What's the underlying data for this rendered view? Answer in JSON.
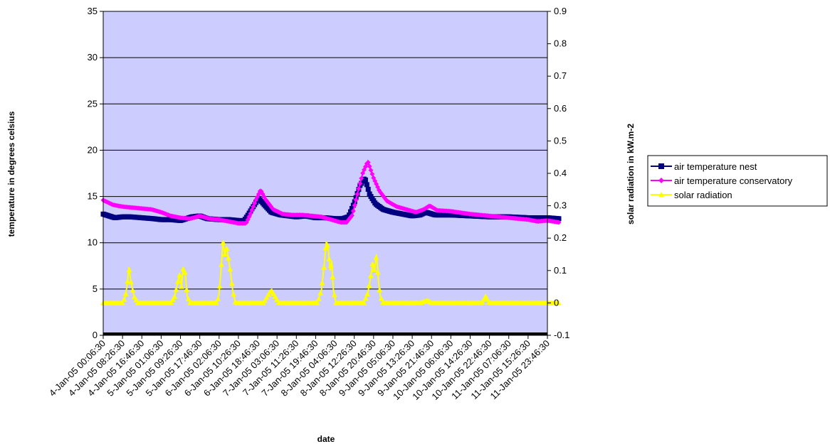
{
  "chart_data": {
    "type": "line",
    "title": "",
    "xlabel": "date",
    "ylabel": "temperature in degrees celsius",
    "y2label": "solar radiation in kW.m-2",
    "ylim": [
      0,
      35
    ],
    "y2lim": [
      -0.1,
      0.9
    ],
    "yticks": [
      0,
      5,
      10,
      15,
      20,
      25,
      30,
      35
    ],
    "y2ticks": [
      "-0.1",
      "0",
      "0.1",
      "0.2",
      "0.3",
      "0.4",
      "0.5",
      "0.6",
      "0.7",
      "0.8",
      "0.9"
    ],
    "categories": [
      "4-Jan-05 00:06:30",
      "4-Jan-05 08:26:30",
      "4-Jan-05 16:46:30",
      "5-Jan-05 01:06:30",
      "5-Jan-05 09:26:30",
      "5-Jan-05 17:46:30",
      "6-Jan-05 02:06:30",
      "6-Jan-05 10:26:30",
      "6-Jan-05 18:46:30",
      "7-Jan-05 03:06:30",
      "7-Jan-05 11:26:30",
      "7-Jan-05 19:46:30",
      "8-Jan-05 04:06:30",
      "8-Jan-05 12:26:30",
      "8-Jan-05 20:46:30",
      "9-Jan-05 05:06:30",
      "9-Jan-05 13:26:30",
      "9-Jan-05 21:46:30",
      "10-Jan-05 06:06:30",
      "10-Jan-05 14:26:30",
      "10-Jan-05 22:46:30",
      "11-Jan-05 07:06:30",
      "11-Jan-05 15:26:30",
      "11-Jan-05 23:46:30"
    ],
    "grid": "horizontal major gridlines",
    "plot_background": "#ccccff",
    "legend_position": "right",
    "series": [
      {
        "name": "air temperature nest",
        "axis": "left",
        "color": "#000080",
        "marker": "square",
        "points": [
          [
            0,
            13.1
          ],
          [
            0.3,
            12.9
          ],
          [
            0.6,
            12.7
          ],
          [
            1,
            12.8
          ],
          [
            1.4,
            12.8
          ],
          [
            2,
            12.7
          ],
          [
            2.6,
            12.6
          ],
          [
            3,
            12.5
          ],
          [
            3.5,
            12.5
          ],
          [
            4,
            12.4
          ],
          [
            4.6,
            12.8
          ],
          [
            5,
            12.9
          ],
          [
            5.4,
            12.6
          ],
          [
            6,
            12.5
          ],
          [
            6.5,
            12.5
          ],
          [
            7,
            12.4
          ],
          [
            7.3,
            12.4
          ],
          [
            7.5,
            13.0
          ],
          [
            7.8,
            14.0
          ],
          [
            8.05,
            14.8
          ],
          [
            8.3,
            14.2
          ],
          [
            8.7,
            13.3
          ],
          [
            9.2,
            13.0
          ],
          [
            9.6,
            12.9
          ],
          [
            10,
            12.8
          ],
          [
            10.5,
            12.9
          ],
          [
            11,
            12.7
          ],
          [
            11.5,
            12.7
          ],
          [
            12,
            12.6
          ],
          [
            12.4,
            12.6
          ],
          [
            12.7,
            12.8
          ],
          [
            13.0,
            14.3
          ],
          [
            13.3,
            16.2
          ],
          [
            13.55,
            17.0
          ],
          [
            13.8,
            15.2
          ],
          [
            14.1,
            14.2
          ],
          [
            14.5,
            13.6
          ],
          [
            15,
            13.3
          ],
          [
            15.5,
            13.1
          ],
          [
            16,
            12.9
          ],
          [
            16.4,
            13.0
          ],
          [
            16.7,
            13.3
          ],
          [
            17.2,
            13.0
          ],
          [
            18,
            13.0
          ],
          [
            19,
            12.9
          ],
          [
            20,
            12.8
          ],
          [
            21,
            12.8
          ],
          [
            22,
            12.7
          ],
          [
            23,
            12.7
          ],
          [
            23.6,
            12.6
          ]
        ]
      },
      {
        "name": "air temperature conservatory",
        "axis": "left",
        "color": "#ff00ff",
        "marker": "diamond",
        "points": [
          [
            0,
            14.6
          ],
          [
            0.5,
            14.1
          ],
          [
            1,
            13.9
          ],
          [
            1.5,
            13.8
          ],
          [
            2,
            13.7
          ],
          [
            2.5,
            13.6
          ],
          [
            3,
            13.3
          ],
          [
            3.5,
            12.9
          ],
          [
            4,
            12.7
          ],
          [
            4.5,
            12.6
          ],
          [
            5,
            12.9
          ],
          [
            5.5,
            12.6
          ],
          [
            6,
            12.5
          ],
          [
            6.5,
            12.3
          ],
          [
            7,
            12.1
          ],
          [
            7.4,
            12.1
          ],
          [
            7.6,
            13.0
          ],
          [
            7.9,
            14.6
          ],
          [
            8.15,
            15.7
          ],
          [
            8.4,
            14.7
          ],
          [
            8.8,
            13.6
          ],
          [
            9.3,
            13.1
          ],
          [
            9.8,
            13.0
          ],
          [
            10.3,
            13.0
          ],
          [
            10.8,
            12.9
          ],
          [
            11.3,
            12.8
          ],
          [
            11.8,
            12.5
          ],
          [
            12.3,
            12.2
          ],
          [
            12.6,
            12.2
          ],
          [
            12.9,
            13.0
          ],
          [
            13.2,
            15.6
          ],
          [
            13.45,
            17.6
          ],
          [
            13.7,
            18.8
          ],
          [
            14.0,
            17.0
          ],
          [
            14.3,
            15.6
          ],
          [
            14.7,
            14.5
          ],
          [
            15.2,
            13.9
          ],
          [
            15.7,
            13.6
          ],
          [
            16.2,
            13.3
          ],
          [
            16.6,
            13.6
          ],
          [
            16.9,
            14.0
          ],
          [
            17.3,
            13.5
          ],
          [
            18,
            13.4
          ],
          [
            19,
            13.1
          ],
          [
            20,
            12.9
          ],
          [
            21,
            12.7
          ],
          [
            22,
            12.5
          ],
          [
            22.5,
            12.3
          ],
          [
            23,
            12.4
          ],
          [
            23.6,
            12.2
          ]
        ]
      },
      {
        "name": "solar radiation",
        "axis": "right",
        "color": "#ffff00",
        "marker": "triangle",
        "points": [
          [
            0,
            0
          ],
          [
            1,
            0
          ],
          [
            1.15,
            0.02
          ],
          [
            1.25,
            0.06
          ],
          [
            1.33,
            0.11
          ],
          [
            1.45,
            0.06
          ],
          [
            1.6,
            0.02
          ],
          [
            1.8,
            0
          ],
          [
            3.5,
            0
          ],
          [
            3.7,
            0.02
          ],
          [
            3.85,
            0.06
          ],
          [
            3.95,
            0.09
          ],
          [
            4.05,
            0.05
          ],
          [
            4.15,
            0.11
          ],
          [
            4.25,
            0.09
          ],
          [
            4.35,
            0.02
          ],
          [
            4.5,
            0
          ],
          [
            5.9,
            0
          ],
          [
            6.0,
            0.03
          ],
          [
            6.1,
            0.1
          ],
          [
            6.2,
            0.19
          ],
          [
            6.3,
            0.15
          ],
          [
            6.4,
            0.17
          ],
          [
            6.5,
            0.13
          ],
          [
            6.58,
            0.1
          ],
          [
            6.7,
            0.04
          ],
          [
            6.85,
            0
          ],
          [
            8.3,
            0
          ],
          [
            8.5,
            0.02
          ],
          [
            8.7,
            0.04
          ],
          [
            8.9,
            0.02
          ],
          [
            9.1,
            0
          ],
          [
            11.1,
            0
          ],
          [
            11.3,
            0.04
          ],
          [
            11.45,
            0.12
          ],
          [
            11.55,
            0.19
          ],
          [
            11.65,
            0.17
          ],
          [
            11.75,
            0.1
          ],
          [
            11.83,
            0.13
          ],
          [
            11.92,
            0.04
          ],
          [
            12.05,
            0
          ],
          [
            13.5,
            0
          ],
          [
            13.7,
            0.03
          ],
          [
            13.85,
            0.08
          ],
          [
            13.95,
            0.12
          ],
          [
            14.05,
            0.1
          ],
          [
            14.15,
            0.15
          ],
          [
            14.25,
            0.07
          ],
          [
            14.35,
            0.02
          ],
          [
            14.5,
            0
          ],
          [
            16.4,
            0
          ],
          [
            16.6,
            0.004
          ],
          [
            16.8,
            0.008
          ],
          [
            17,
            0
          ],
          [
            19.6,
            0
          ],
          [
            19.8,
            0.02
          ],
          [
            20,
            0
          ],
          [
            23.6,
            0
          ]
        ]
      }
    ]
  }
}
